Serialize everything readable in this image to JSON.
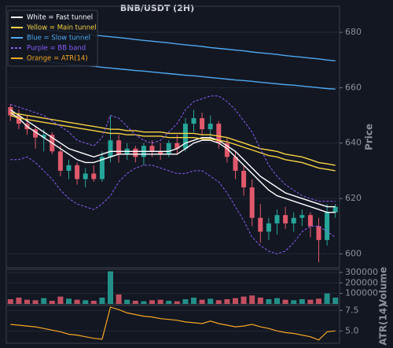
{
  "chart_data": [
    {
      "type": "candlestick",
      "title": "BNB/USDT (2H)",
      "ylabel": "Price",
      "open": [
        653,
        650,
        647,
        645,
        642,
        643,
        637,
        630,
        632,
        627,
        629,
        627,
        635,
        641,
        636,
        638,
        635,
        639,
        637,
        636,
        640,
        638,
        647,
        649,
        645,
        647,
        640,
        635,
        630,
        624,
        613,
        608,
        611,
        614,
        611,
        613,
        614,
        610,
        605,
        615
      ],
      "high": [
        654,
        652,
        650,
        646,
        645,
        644,
        639,
        634,
        633,
        631,
        632,
        637,
        650,
        643,
        640,
        639,
        640,
        641,
        640,
        641,
        643,
        649,
        652,
        651,
        650,
        648,
        642,
        637,
        632,
        627,
        618,
        613,
        616,
        617,
        615,
        616,
        615,
        613,
        618,
        618
      ],
      "low": [
        648,
        645,
        643,
        638,
        637,
        636,
        628,
        627,
        625,
        624,
        626,
        626,
        633,
        633,
        634,
        633,
        632,
        635,
        634,
        635,
        636,
        637,
        644,
        643,
        642,
        638,
        633,
        627,
        621,
        610,
        604,
        605,
        607,
        609,
        608,
        610,
        606,
        597,
        603,
        613
      ],
      "close": [
        650,
        647,
        645,
        642,
        643,
        637,
        630,
        632,
        627,
        629,
        627,
        635,
        641,
        636,
        638,
        635,
        639,
        637,
        636,
        640,
        638,
        647,
        649,
        645,
        647,
        640,
        635,
        630,
        624,
        613,
        608,
        611,
        614,
        611,
        613,
        614,
        610,
        605,
        615,
        617
      ],
      "up_color": "#26a69a",
      "down_color": "#e0596b",
      "series": [
        {
          "name": "White = Fast tunnel",
          "color": "#ffffff",
          "dashed": false,
          "upper": [
            652,
            650,
            648,
            646,
            644,
            642,
            640,
            638,
            637,
            636,
            635,
            636,
            637,
            637,
            637,
            637,
            637,
            637,
            637,
            637,
            638,
            640,
            641,
            642,
            642,
            641,
            639,
            637,
            634,
            631,
            628,
            626,
            624,
            622,
            621,
            620,
            619,
            618,
            617,
            617
          ],
          "lower": [
            651,
            649,
            646,
            644,
            642,
            640,
            638,
            636,
            634,
            633,
            633,
            634,
            635,
            636,
            636,
            636,
            636,
            636,
            636,
            636,
            636,
            638,
            640,
            641,
            641,
            640,
            638,
            635,
            632,
            629,
            626,
            623,
            621,
            620,
            619,
            618,
            617,
            616,
            615,
            615
          ]
        },
        {
          "name": "Yellow = Main tunnel",
          "color": "#f5d142",
          "dashed": false,
          "upper": [
            651,
            650.5,
            650,
            649.5,
            649,
            648.5,
            648,
            647.5,
            647,
            646.5,
            646,
            645.5,
            645,
            645,
            644.5,
            644.5,
            644,
            644,
            644,
            643.5,
            643.5,
            643.5,
            643.5,
            643,
            643,
            642.5,
            642,
            641,
            640,
            639,
            638,
            637.5,
            637,
            636,
            635.5,
            635,
            634,
            633,
            632.5,
            632
          ],
          "lower": [
            650,
            649,
            648.5,
            648,
            647.5,
            647,
            646.5,
            646,
            645.5,
            645,
            644.5,
            644,
            643.5,
            643.5,
            643,
            643,
            642.5,
            642.5,
            642.5,
            642,
            642,
            642,
            642,
            641.5,
            641.5,
            641,
            640.5,
            639.5,
            638.5,
            637.5,
            636.5,
            635.5,
            635,
            634,
            633.5,
            633,
            632,
            631,
            630.5,
            630
          ]
        },
        {
          "name": "Blue = Slow tunnel",
          "color": "#4fa8f0",
          "dashed": false,
          "upper": [
            682.3,
            682,
            681.7,
            681.3,
            681,
            680.7,
            680.4,
            680,
            679.7,
            679.4,
            679,
            678.7,
            678.4,
            678.1,
            677.8,
            677.4,
            677.1,
            676.8,
            676.5,
            676.2,
            675.8,
            675.5,
            675.2,
            674.9,
            674.5,
            674.2,
            673.9,
            673.6,
            673.3,
            672.9,
            672.6,
            672.3,
            672,
            671.6,
            671.3,
            671,
            670.7,
            670.4,
            670,
            669.7
          ],
          "lower": [
            670.5,
            670.2,
            669.9,
            669.6,
            669.4,
            669.1,
            668.8,
            668.5,
            668.2,
            667.9,
            667.7,
            667.4,
            667.1,
            666.8,
            666.5,
            666.2,
            666,
            665.7,
            665.4,
            665.1,
            664.8,
            664.5,
            664.3,
            664,
            663.7,
            663.4,
            663.1,
            662.8,
            662.6,
            662.3,
            662,
            661.7,
            661.4,
            661.1,
            660.9,
            660.6,
            660.3,
            660,
            659.7,
            659.5
          ]
        },
        {
          "name": "Purple = BB band",
          "color": "#8a5cf6",
          "dashed": true,
          "upper": [
            654,
            653,
            652,
            651,
            650,
            648,
            646,
            644,
            641,
            640,
            639,
            642,
            650,
            649,
            646,
            643,
            641,
            640,
            641,
            644,
            647,
            652,
            655,
            656,
            657,
            657,
            655,
            652,
            648,
            644,
            638,
            632,
            628,
            625,
            623,
            621,
            620,
            619,
            619,
            619
          ],
          "lower": [
            634,
            634,
            635,
            633,
            630,
            627,
            623,
            620,
            618,
            617,
            616,
            618,
            621,
            626,
            629,
            631,
            632,
            632,
            631,
            630,
            629,
            629,
            630,
            630,
            628,
            626,
            622,
            617,
            612,
            606,
            603,
            601,
            600,
            601,
            604,
            608,
            610,
            610,
            608,
            606
          ]
        }
      ],
      "ylim": [
        595,
        689.4
      ],
      "yticks": [
        600,
        620,
        640,
        660,
        680
      ],
      "grid": true
    },
    {
      "type": "bar",
      "ylabel": "Volume",
      "values": [
        45000,
        60000,
        40000,
        35000,
        55000,
        30000,
        70000,
        50000,
        40000,
        35000,
        30000,
        60000,
        310000,
        90000,
        40000,
        30000,
        25000,
        35000,
        40000,
        30000,
        25000,
        45000,
        60000,
        40000,
        50000,
        35000,
        45000,
        55000,
        70000,
        80000,
        60000,
        45000,
        55000,
        40000,
        35000,
        45000,
        40000,
        50000,
        100000,
        60000
      ],
      "ylim": [
        0,
        330000
      ],
      "yticks": [
        100000,
        200000,
        300000
      ],
      "grid": true
    },
    {
      "type": "line",
      "ylabel": "ATR(14)",
      "series": [
        {
          "name": "Orange = ATR(14)",
          "color": "#f5a623",
          "values": [
            5.8,
            5.7,
            5.6,
            5.5,
            5.3,
            5.1,
            4.9,
            4.6,
            4.5,
            4.3,
            4.1,
            4.0,
            7.9,
            7.6,
            7.2,
            7.0,
            6.8,
            6.7,
            6.5,
            6.4,
            6.3,
            6.1,
            6.0,
            5.9,
            6.2,
            5.9,
            5.7,
            5.5,
            5.6,
            5.8,
            5.5,
            5.3,
            5.0,
            4.8,
            4.7,
            4.5,
            4.3,
            3.9,
            4.9,
            5.0
          ]
        }
      ],
      "ylim": [
        3.5,
        8.1
      ],
      "yticks": [
        {
          "value": 5,
          "label": "5.0"
        },
        7.5
      ],
      "grid": true
    }
  ]
}
